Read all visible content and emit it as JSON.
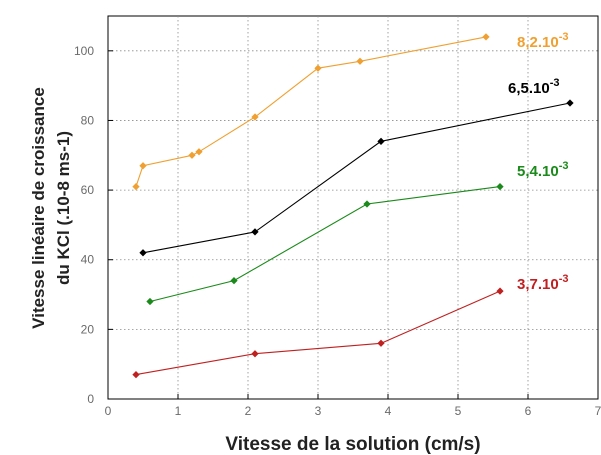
{
  "chart_data": {
    "type": "line",
    "title": "",
    "xlabel": "Vitesse de la solution (cm/s)",
    "ylabel_lines": [
      "Vitesse linéaire de croissance",
      "du KCl (.10-8 ms-1)"
    ],
    "xlim": [
      0,
      7
    ],
    "ylim": [
      0,
      110
    ],
    "xticks": [
      0,
      1,
      2,
      3,
      4,
      5,
      6,
      7
    ],
    "yticks": [
      0,
      20,
      40,
      60,
      80,
      100
    ],
    "grid": true,
    "series": [
      {
        "label_base": "8,2.10",
        "label_exp": "-3",
        "color": "#f0a030",
        "x": [
          0.4,
          0.5,
          1.2,
          1.3,
          2.1,
          3.0,
          3.6,
          5.4
        ],
        "y": [
          61,
          67,
          70,
          71,
          81,
          95,
          97,
          104
        ]
      },
      {
        "label_base": "6,5.10",
        "label_exp": "-3",
        "color": "#000000",
        "x": [
          0.5,
          2.1,
          3.9,
          6.6
        ],
        "y": [
          42,
          48,
          74,
          85
        ]
      },
      {
        "label_base": "5,4.10",
        "label_exp": "-3",
        "color": "#1a8a1a",
        "x": [
          0.6,
          1.8,
          3.7,
          5.6
        ],
        "y": [
          28,
          34,
          56,
          61
        ]
      },
      {
        "label_base": "3,7.10",
        "label_exp": "-3",
        "color": "#c02020",
        "x": [
          0.4,
          2.1,
          3.9,
          5.6
        ],
        "y": [
          7,
          13,
          16,
          31
        ]
      }
    ]
  }
}
